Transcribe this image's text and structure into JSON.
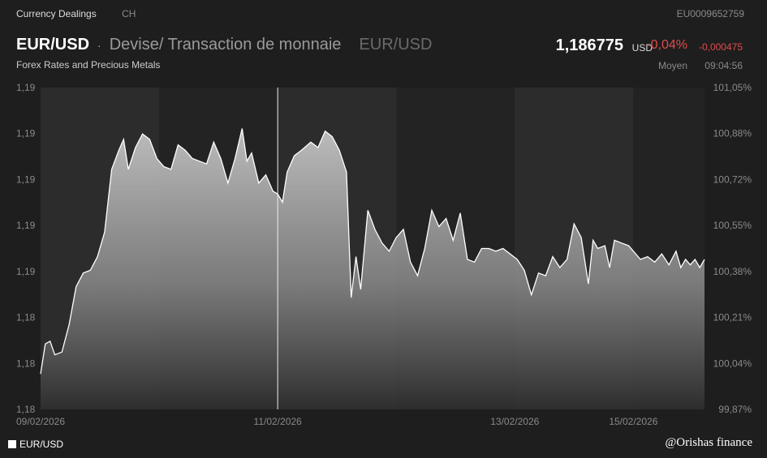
{
  "header": {
    "tab_label": "Currency Dealings",
    "region": "CH",
    "isin": "EU0009652759",
    "pair": "EUR/USD",
    "separator": "·",
    "description": "Devise/ Transaction de monnaie",
    "pair_muted": "EUR/USD",
    "subtitle": "Forex Rates and Precious Metals",
    "price": "1,186775",
    "price_currency": "USD",
    "change_pct": "-0,04%",
    "change_abs": "-0,000475",
    "price_type": "Moyen",
    "time": "09:04:56"
  },
  "legend_label": "EUR/USD",
  "watermark": "@Orishas finance",
  "colors": {
    "negative": "#e14b4b",
    "line": "#ffffff",
    "background": "#1e1e1e"
  },
  "chart_data": {
    "type": "area",
    "series": [
      {
        "name": "EUR/USD"
      }
    ],
    "y_left_ticks": [
      "1,19",
      "1,19",
      "1,19",
      "1,19",
      "1,19",
      "1,18",
      "1,18",
      "1,18"
    ],
    "y_right_ticks": [
      "101,05%",
      "100,88%",
      "100,72%",
      "100,55%",
      "100,38%",
      "100,21%",
      "100,04%",
      "99,87%"
    ],
    "x_ticks": [
      "09/02/2026",
      "11/02/2026",
      "13/02/2026",
      "15/02/2026"
    ],
    "x_tick_positions": [
      0.0,
      2.0,
      4.0,
      5.0
    ],
    "xlim": [
      0,
      5.6
    ],
    "ylim": [
      99.87,
      101.05
    ],
    "y_unit": "% of reference",
    "points": [
      [
        0.0,
        100.0
      ],
      [
        0.04,
        100.11
      ],
      [
        0.08,
        100.12
      ],
      [
        0.12,
        100.07
      ],
      [
        0.18,
        100.08
      ],
      [
        0.24,
        100.18
      ],
      [
        0.3,
        100.32
      ],
      [
        0.36,
        100.37
      ],
      [
        0.42,
        100.38
      ],
      [
        0.48,
        100.43
      ],
      [
        0.54,
        100.52
      ],
      [
        0.6,
        100.75
      ],
      [
        0.66,
        100.82
      ],
      [
        0.7,
        100.86
      ],
      [
        0.74,
        100.75
      ],
      [
        0.8,
        100.83
      ],
      [
        0.86,
        100.88
      ],
      [
        0.92,
        100.86
      ],
      [
        0.98,
        100.79
      ],
      [
        1.04,
        100.76
      ],
      [
        1.1,
        100.75
      ],
      [
        1.16,
        100.84
      ],
      [
        1.22,
        100.82
      ],
      [
        1.28,
        100.79
      ],
      [
        1.34,
        100.78
      ],
      [
        1.4,
        100.77
      ],
      [
        1.46,
        100.85
      ],
      [
        1.52,
        100.79
      ],
      [
        1.58,
        100.7
      ],
      [
        1.64,
        100.79
      ],
      [
        1.7,
        100.9
      ],
      [
        1.74,
        100.78
      ],
      [
        1.78,
        100.81
      ],
      [
        1.84,
        100.7
      ],
      [
        1.9,
        100.73
      ],
      [
        1.96,
        100.67
      ],
      [
        2.0,
        100.66
      ],
      [
        2.04,
        100.63
      ],
      [
        2.08,
        100.74
      ],
      [
        2.14,
        100.8
      ],
      [
        2.2,
        100.82
      ],
      [
        2.28,
        100.85
      ],
      [
        2.34,
        100.83
      ],
      [
        2.4,
        100.89
      ],
      [
        2.46,
        100.87
      ],
      [
        2.52,
        100.82
      ],
      [
        2.58,
        100.74
      ],
      [
        2.62,
        100.28
      ],
      [
        2.66,
        100.43
      ],
      [
        2.7,
        100.31
      ],
      [
        2.76,
        100.6
      ],
      [
        2.82,
        100.53
      ],
      [
        2.88,
        100.48
      ],
      [
        2.94,
        100.45
      ],
      [
        3.0,
        100.5
      ],
      [
        3.06,
        100.53
      ],
      [
        3.12,
        100.41
      ],
      [
        3.18,
        100.36
      ],
      [
        3.24,
        100.46
      ],
      [
        3.3,
        100.6
      ],
      [
        3.36,
        100.54
      ],
      [
        3.42,
        100.57
      ],
      [
        3.48,
        100.49
      ],
      [
        3.54,
        100.59
      ],
      [
        3.6,
        100.42
      ],
      [
        3.66,
        100.41
      ],
      [
        3.72,
        100.46
      ],
      [
        3.78,
        100.46
      ],
      [
        3.84,
        100.45
      ],
      [
        3.9,
        100.46
      ],
      [
        3.96,
        100.44
      ],
      [
        4.02,
        100.42
      ],
      [
        4.08,
        100.38
      ],
      [
        4.14,
        100.29
      ],
      [
        4.2,
        100.37
      ],
      [
        4.26,
        100.36
      ],
      [
        4.32,
        100.43
      ],
      [
        4.38,
        100.39
      ],
      [
        4.44,
        100.42
      ],
      [
        4.5,
        100.55
      ],
      [
        4.56,
        100.5
      ],
      [
        4.62,
        100.33
      ],
      [
        4.66,
        100.49
      ],
      [
        4.7,
        100.46
      ],
      [
        4.76,
        100.47
      ],
      [
        4.8,
        100.39
      ],
      [
        4.84,
        100.49
      ],
      [
        4.9,
        100.48
      ],
      [
        4.96,
        100.47
      ],
      [
        5.0,
        100.45
      ],
      [
        5.06,
        100.42
      ],
      [
        5.12,
        100.43
      ],
      [
        5.18,
        100.41
      ],
      [
        5.24,
        100.44
      ],
      [
        5.3,
        100.4
      ],
      [
        5.36,
        100.45
      ],
      [
        5.4,
        100.39
      ],
      [
        5.44,
        100.42
      ],
      [
        5.48,
        100.4
      ],
      [
        5.52,
        100.42
      ],
      [
        5.56,
        100.39
      ],
      [
        5.6,
        100.42
      ]
    ],
    "highlight_x": 2.0,
    "legend": "bottom-left",
    "grid": false
  }
}
